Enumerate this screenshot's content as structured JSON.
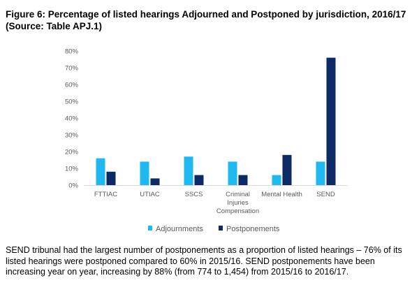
{
  "figure": {
    "title": "Figure 6: Percentage of listed hearings Adjourned and Postponed by jurisdiction, 2016/17 (Source: Table APJ.1)",
    "caption": "SEND tribunal had the largest number of postponements as a proportion of listed hearings – 76% of its listed hearings were postponed compared to 60% in 2015/16. SEND postponements have been increasing year on year, increasing by 88% (from 774 to 1,454) from 2015/16 to 2016/17."
  },
  "chart_data": {
    "type": "bar",
    "categories": [
      "FTTIAC",
      "UTIAC",
      "SSCS",
      "Criminal Injuries Compensation",
      "Mental Health",
      "SEND"
    ],
    "category_lines": [
      [
        "FTTIAC"
      ],
      [
        "UTIAC"
      ],
      [
        "SSCS"
      ],
      [
        "Criminal",
        "Injuries",
        "Compensation"
      ],
      [
        "Mental Health"
      ],
      [
        "SEND"
      ]
    ],
    "series": [
      {
        "name": "Adjournments",
        "values": [
          16,
          14,
          17,
          14,
          6,
          14
        ],
        "color": "#1fb8f0"
      },
      {
        "name": "Postponements",
        "values": [
          8,
          4,
          6,
          6,
          18,
          76
        ],
        "color": "#0d2a66"
      }
    ],
    "yticks": [
      "0%",
      "10%",
      "20%",
      "30%",
      "40%",
      "50%",
      "60%",
      "70%",
      "80%"
    ],
    "ylim": [
      0,
      80
    ],
    "grid": false,
    "legend": "bottom",
    "axis_color": "#d9d9d9",
    "tick_color": "#595959"
  }
}
